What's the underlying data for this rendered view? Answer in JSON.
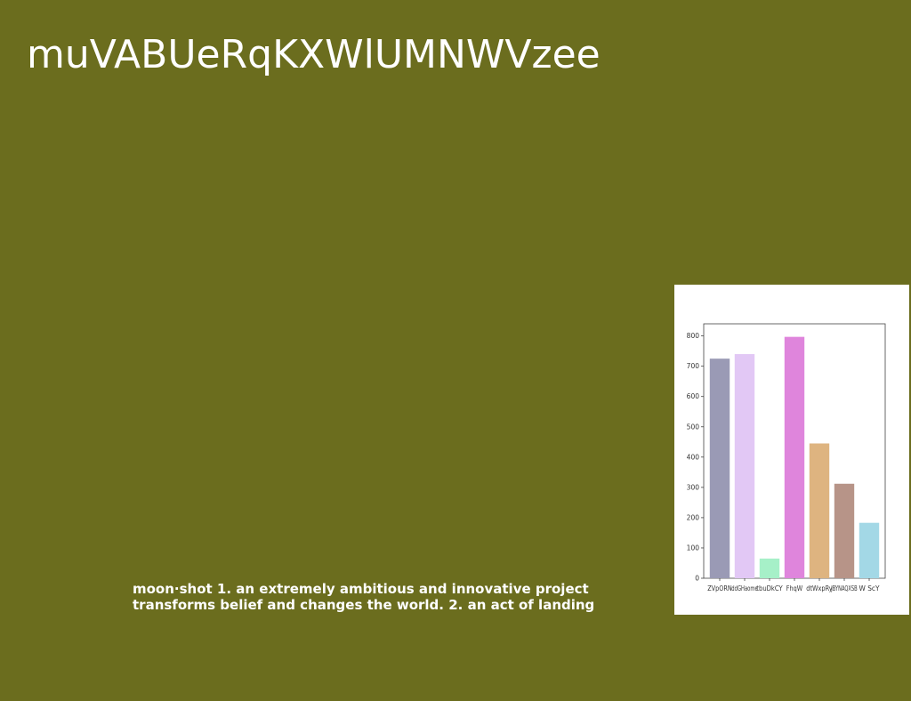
{
  "slide": {
    "title": "muVABUeRqKXWlUMNWVzee",
    "caption_line1": "moon·shot 1. an extremely ambitious and innovative project",
    "caption_line2": "transforms belief and changes the world. 2. an act of landing"
  },
  "colors": {
    "background": "#6b6d1e",
    "text": "#ffffff"
  },
  "chart_data": {
    "type": "bar",
    "categories": [
      "ZVpORN",
      "ddGHaome",
      "tbuDkCY",
      "FhqW",
      "dtWxpRy",
      "JBYNAQXSB",
      "W ScY"
    ],
    "values": [
      725,
      740,
      65,
      797,
      445,
      312,
      183
    ],
    "bar_colors": [
      "#9a9ab5",
      "#e2c8f5",
      "#a6f0c8",
      "#df85dc",
      "#deb480",
      "#b79488",
      "#a3d8e6"
    ],
    "yticks": [
      0,
      100,
      200,
      300,
      400,
      500,
      600,
      700,
      800
    ],
    "ylim": [
      0,
      840
    ],
    "title": "",
    "xlabel": "",
    "ylabel": "",
    "grid": false
  }
}
